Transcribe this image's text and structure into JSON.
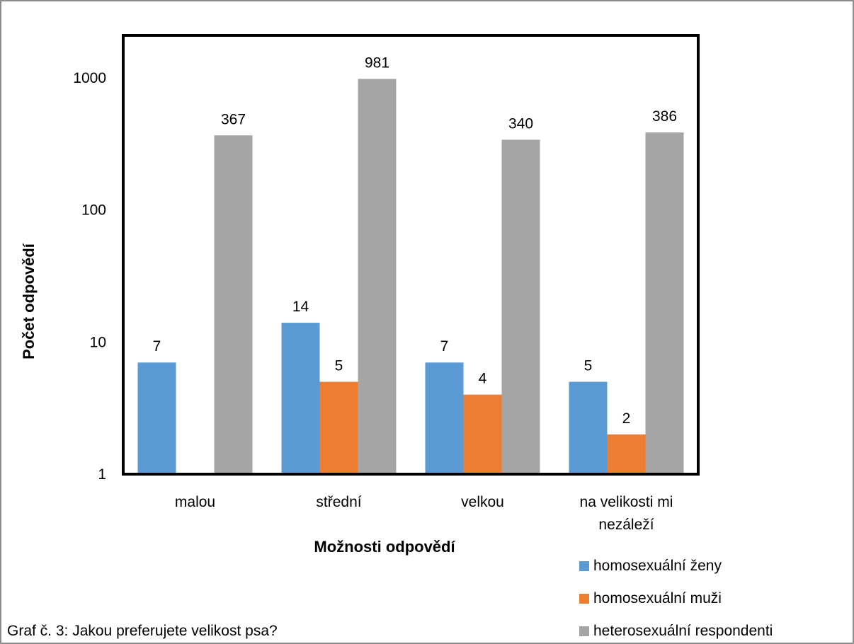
{
  "chart_data": {
    "type": "bar",
    "title": "",
    "xlabel": "Možnosti odpovědí",
    "ylabel": "Počet odpovědí",
    "yscale": "log",
    "ylim": [
      1,
      1000
    ],
    "yticks": [
      "1",
      "10",
      "100",
      "1000"
    ],
    "categories": [
      "malou",
      "střední",
      "velkou",
      "na velikosti mi nezáleží"
    ],
    "series": [
      {
        "name": "homosexuální ženy",
        "color": "#5B9BD5",
        "values": [
          7,
          14,
          7,
          5
        ]
      },
      {
        "name": "homosexuální muži",
        "color": "#ED7D31",
        "values": [
          null,
          5,
          4,
          2
        ]
      },
      {
        "name": "heterosexuální respondenti",
        "color": "#A5A5A5",
        "values": [
          367,
          981,
          340,
          386
        ]
      }
    ],
    "grid": false,
    "legend_position": "bottom-right"
  },
  "caption": "Graf č. 3: Jakou preferujete velikost psa?"
}
